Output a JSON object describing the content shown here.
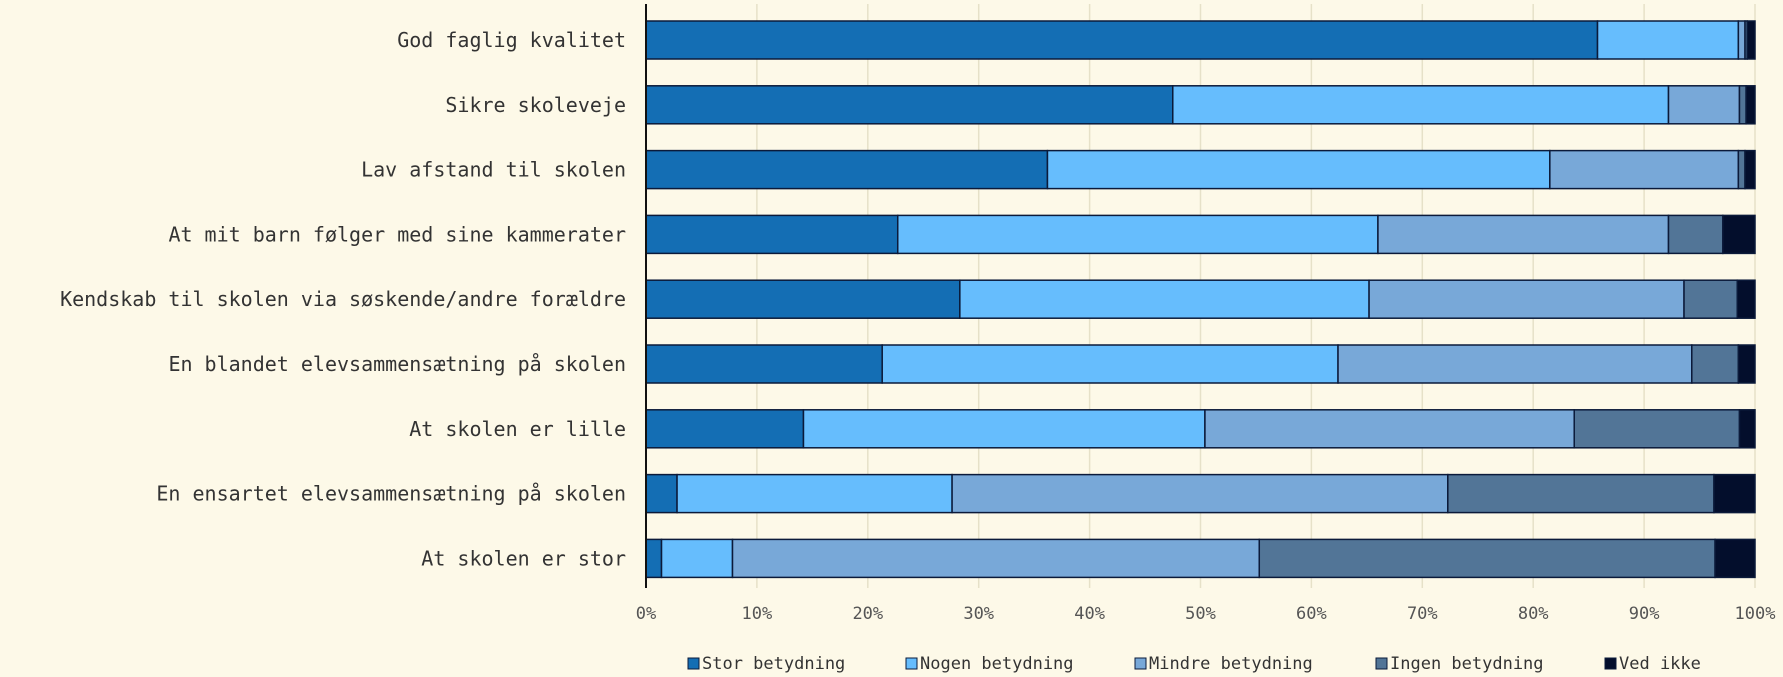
{
  "chart_data": {
    "type": "bar",
    "orientation": "horizontal",
    "stacked": true,
    "categories": [
      "God faglig kvalitet",
      "Sikre skoleveje",
      "Lav afstand til skolen",
      "At mit barn følger med sine kammerater",
      "Kendskab til skolen via søskende/andre forældre ",
      "En blandet elevsammensætning på skolen",
      "At skolen er lille",
      "En ensartet elevsammensætning på skolen",
      "At skolen er stor"
    ],
    "series": [
      {
        "name": "Stor betydning",
        "color": "#146eb4",
        "values": [
          85.8,
          47.5,
          36.2,
          22.7,
          28.3,
          21.3,
          14.2,
          2.8,
          1.4
        ]
      },
      {
        "name": "Nogen betydning",
        "color": "#66bdfd",
        "values": [
          12.7,
          44.7,
          45.3,
          43.3,
          36.9,
          41.1,
          36.2,
          24.8,
          6.4
        ]
      },
      {
        "name": "Mindre betydning",
        "color": "#78a8d8",
        "values": [
          0.6,
          6.4,
          17.0,
          26.2,
          28.4,
          31.9,
          33.3,
          44.7,
          47.5
        ]
      },
      {
        "name": "Ingen betydning",
        "color": "#527597",
        "values": [
          0.2,
          0.6,
          0.6,
          4.9,
          4.8,
          4.2,
          14.9,
          24.0,
          41.1
        ]
      },
      {
        "name": "Ved ikke",
        "color": "#030e2c",
        "values": [
          0.7,
          0.8,
          0.9,
          2.9,
          1.6,
          1.5,
          1.4,
          3.7,
          3.6
        ]
      }
    ],
    "xlim": [
      0,
      100
    ],
    "x_ticks": [
      "0%",
      "10%",
      "20%",
      "30%",
      "40%",
      "50%",
      "60%",
      "70%",
      "80%",
      "90%",
      "100%"
    ],
    "grid": "vertical",
    "legend_position": "bottom",
    "title": "",
    "xlabel": "",
    "ylabel": ""
  }
}
